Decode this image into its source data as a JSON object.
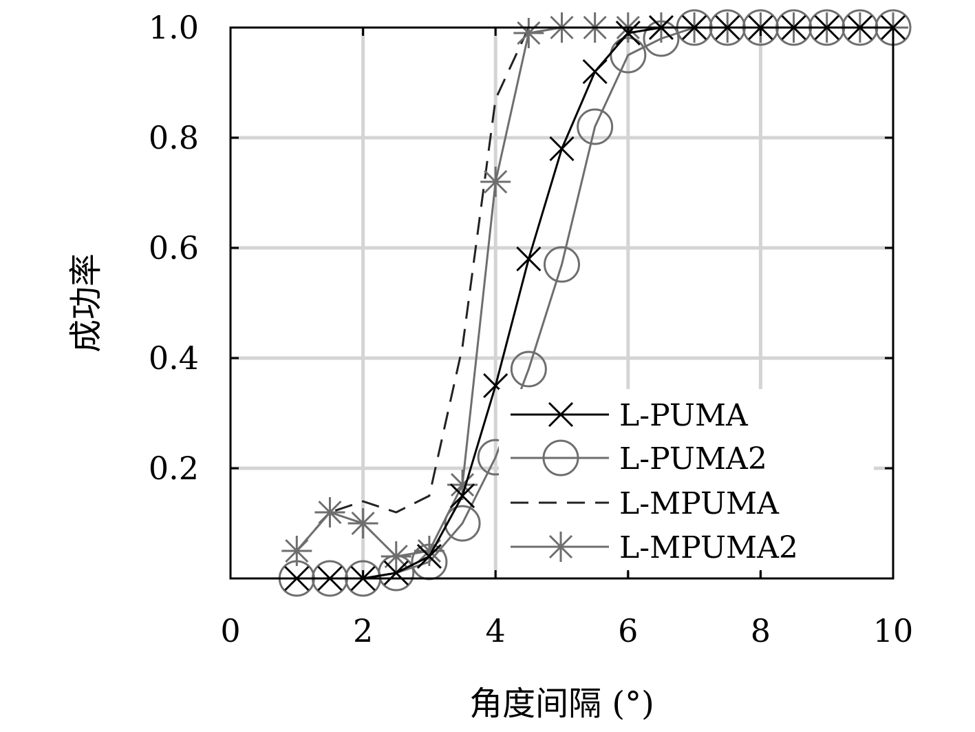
{
  "chart_data": {
    "type": "line",
    "xlabel": "角度间隔 (°)",
    "ylabel": "成功率",
    "xlim": [
      0,
      10
    ],
    "ylim": [
      0,
      1
    ],
    "x_ticks": [
      "0",
      "2",
      "4",
      "6",
      "8",
      "10"
    ],
    "y_ticks": [
      "0.2",
      "0.4",
      "0.6",
      "0.8",
      "1.0"
    ],
    "grid": true,
    "legend_position": "bottom-right",
    "x": [
      1.0,
      1.5,
      2.0,
      2.5,
      3.0,
      3.5,
      4.0,
      4.5,
      5.0,
      5.5,
      6.0,
      6.5,
      7.0,
      7.5,
      8.0,
      8.5,
      9.0,
      9.5,
      10.0
    ],
    "series": [
      {
        "name": "L-PUMA",
        "color": "#000000",
        "dash": "solid",
        "marker": "x",
        "x": [
          1.0,
          1.5,
          2.0,
          2.5,
          3.0,
          3.5,
          4.0,
          4.5,
          5.0,
          5.5,
          6.0,
          6.5,
          7.0,
          7.5,
          8.0,
          8.5,
          9.0,
          9.5,
          10.0
        ],
        "values": [
          0.0,
          0.0,
          0.0,
          0.01,
          0.04,
          0.15,
          0.35,
          0.58,
          0.78,
          0.92,
          0.99,
          1.0,
          1.0,
          1.0,
          1.0,
          1.0,
          1.0,
          1.0,
          1.0
        ]
      },
      {
        "name": "L-PUMA2",
        "color": "#6e6e6e",
        "dash": "solid",
        "marker": "circle",
        "x": [
          1.0,
          1.5,
          2.0,
          2.5,
          3.0,
          3.5,
          4.0,
          4.5,
          5.0,
          5.5,
          6.0,
          6.5,
          7.0,
          7.5,
          8.0,
          8.5,
          9.0,
          9.5,
          10.0
        ],
        "values": [
          0.0,
          0.0,
          0.0,
          0.01,
          0.03,
          0.1,
          0.22,
          0.38,
          0.57,
          0.82,
          0.95,
          0.98,
          1.0,
          1.0,
          1.0,
          1.0,
          1.0,
          1.0,
          1.0
        ]
      },
      {
        "name": "L-MPUMA",
        "color": "#222222",
        "dash": "dashed",
        "marker": "none",
        "x": [
          1.0,
          1.5,
          2.0,
          2.5,
          3.0,
          3.5,
          4.0,
          4.5,
          5.0,
          5.5,
          6.0,
          6.5,
          7.0,
          7.5,
          8.0,
          8.5,
          9.0,
          9.5,
          10.0
        ],
        "values": [
          0.05,
          0.12,
          0.14,
          0.12,
          0.15,
          0.42,
          0.87,
          1.0,
          1.0,
          1.0,
          1.0,
          1.0,
          1.0,
          1.0,
          1.0,
          1.0,
          1.0,
          1.0,
          1.0
        ]
      },
      {
        "name": "L-MPUMA2",
        "color": "#6e6e6e",
        "dash": "solid",
        "marker": "asterisk",
        "x": [
          1.0,
          1.5,
          2.0,
          2.5,
          3.0,
          3.5,
          4.0,
          4.5,
          5.0,
          5.5,
          6.0,
          6.5,
          7.0,
          7.5,
          8.0,
          8.5,
          9.0,
          9.5,
          10.0
        ],
        "values": [
          0.05,
          0.12,
          0.1,
          0.04,
          0.05,
          0.17,
          0.72,
          0.99,
          1.0,
          1.0,
          1.0,
          1.0,
          1.0,
          1.0,
          1.0,
          1.0,
          1.0,
          1.0,
          1.0
        ]
      }
    ]
  }
}
